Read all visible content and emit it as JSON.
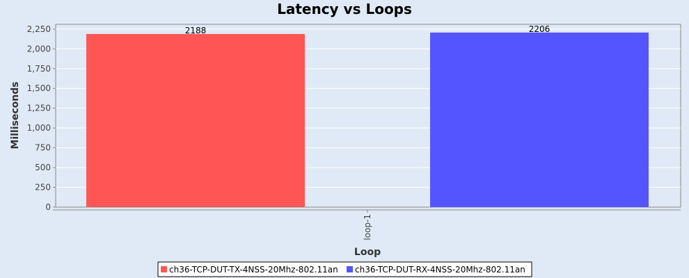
{
  "chart_data": {
    "type": "bar",
    "title": "Latency vs Loops",
    "xlabel": "Loop",
    "ylabel": "Milliseconds",
    "categories": [
      "loop-1"
    ],
    "series": [
      {
        "name": "ch36-TCP-DUT-TX-4NSS-20Mhz-802.11an",
        "values": [
          2188
        ],
        "color": "#ff5555"
      },
      {
        "name": "ch36-TCP-DUT-RX-4NSS-20Mhz-802.11an",
        "values": [
          2206
        ],
        "color": "#5555ff"
      }
    ],
    "ylim": [
      0,
      2310
    ],
    "yticks": [
      0,
      250,
      500,
      750,
      1000,
      1250,
      1500,
      1750,
      2000,
      2250
    ],
    "ytick_labels": [
      "0",
      "250",
      "500",
      "750",
      "1,000",
      "1,250",
      "1,500",
      "1,750",
      "2,000",
      "2,250"
    ],
    "grid": true,
    "legend_position": "bottom"
  }
}
